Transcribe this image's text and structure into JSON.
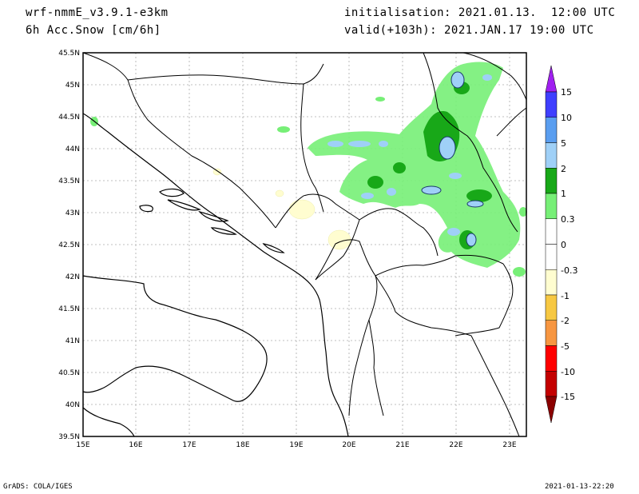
{
  "header": {
    "model": "wrf-nmmE_v3.9.1-e3km",
    "field": "6h Acc.Snow [cm/6h]",
    "init": "initialisation: 2021.01.13.  12:00 UTC",
    "valid": "valid(+103h): 2021.JAN.17 19:00 UTC"
  },
  "footer": {
    "left": "GrADS: COLA/IGES",
    "right": "2021-01-13-22:20"
  },
  "map": {
    "lon_range": [
      15,
      23.25
    ],
    "lat_range": [
      39.5,
      45.5
    ],
    "lon_ticks": [
      "15E",
      "16E",
      "17E",
      "18E",
      "19E",
      "20E",
      "21E",
      "22E",
      "23E"
    ],
    "lat_ticks": [
      "39.5N",
      "40N",
      "40.5N",
      "41N",
      "41.5N",
      "42N",
      "42.5N",
      "43N",
      "43.5N",
      "44N",
      "44.5N",
      "45N",
      "45.5N"
    ]
  },
  "legend": {
    "labels": [
      "15",
      "10",
      "5",
      "2",
      "1",
      "0.3",
      "0",
      "-0.3",
      "-1",
      "-2",
      "-5",
      "-10",
      "-15"
    ],
    "colors": [
      "#3f3fff",
      "#5a9ef0",
      "#9fd0f7",
      "#18a818",
      "#77ef77",
      "#ffffff",
      "#ffffff",
      "#fffdd0",
      "#f7c842",
      "#f79641",
      "#ff0000",
      "#c40000"
    ],
    "top_arrow_color": "#a020f0",
    "bottom_arrow_color": "#8b0000"
  }
}
